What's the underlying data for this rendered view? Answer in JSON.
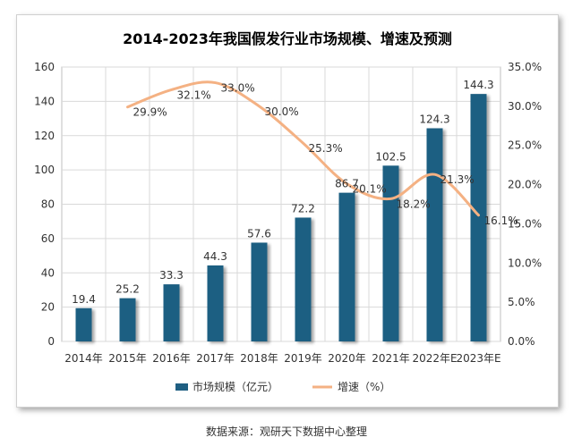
{
  "chart_data": {
    "type": "bar",
    "title": "2014-2023年我国假发行业市场规模、增速及预测",
    "categories": [
      "2014年",
      "2015年",
      "2016年",
      "2017年",
      "2018年",
      "2019年",
      "2020年",
      "2021年",
      "2022年E",
      "2023年E"
    ],
    "series": [
      {
        "name": "市场规模（亿元）",
        "type": "bar",
        "axis": "left",
        "color": "#1f5f82",
        "values": [
          19.4,
          25.2,
          33.3,
          44.3,
          57.6,
          72.2,
          86.7,
          102.5,
          124.3,
          144.3
        ],
        "labels": [
          "19.4",
          "25.2",
          "33.3",
          "44.3",
          "57.6",
          "72.2",
          "86.7",
          "102.5",
          "124.3",
          "144.3"
        ]
      },
      {
        "name": "增速（%）",
        "type": "line",
        "axis": "right",
        "color": "#f4b183",
        "smooth": true,
        "values": [
          null,
          29.9,
          32.1,
          33.0,
          30.0,
          25.3,
          20.1,
          18.2,
          21.3,
          16.1
        ],
        "labels": [
          "",
          "29.9%",
          "32.1%",
          "33.0%",
          "30.0%",
          "25.3%",
          "20.1%",
          "18.2%",
          "21.3%",
          "16.1%"
        ]
      }
    ],
    "y_left": {
      "min": 0,
      "max": 160,
      "ticks": [
        "0",
        "20",
        "40",
        "60",
        "80",
        "100",
        "120",
        "140",
        "160"
      ]
    },
    "y_right": {
      "min": 0,
      "max": 35,
      "ticks": [
        "0.0%",
        "5.0%",
        "10.0%",
        "15.0%",
        "20.0%",
        "25.0%",
        "30.0%",
        "35.0%"
      ]
    },
    "grid": true,
    "legend_position": "bottom"
  },
  "source": "数据来源：观研天下数据中心整理"
}
